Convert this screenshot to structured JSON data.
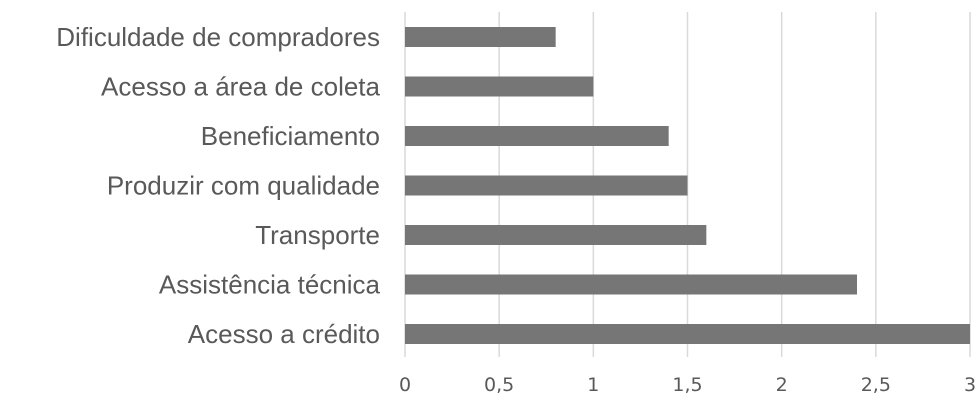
{
  "chart_data": {
    "type": "bar",
    "orientation": "horizontal",
    "title": "",
    "xlabel": "",
    "ylabel": "",
    "categories": [
      "Dificuldade de compradores",
      "Acesso a área de coleta",
      "Beneficiamento",
      "Produzir com qualidade",
      "Transporte",
      "Assistência técnica",
      "Acesso a crédito"
    ],
    "values": [
      0.8,
      1.0,
      1.4,
      1.5,
      1.6,
      2.4,
      3.0
    ],
    "xlim": [
      0,
      3
    ],
    "xticks": [
      0,
      0.5,
      1,
      1.5,
      2,
      2.5,
      3
    ],
    "xtick_labels": [
      "0",
      "0,5",
      "1",
      "1,5",
      "2",
      "2,5",
      "3"
    ],
    "grid": "vertical",
    "legend": "none",
    "colors": {
      "bar": "#767676",
      "grid": "#d9d9d9",
      "text": "#595959",
      "axis": "#d9d9d9"
    }
  }
}
